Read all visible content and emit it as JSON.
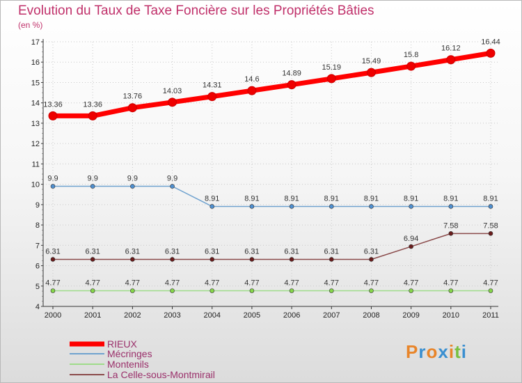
{
  "title": "Evolution du Taux de Taxe Foncière sur les Propriétés Bâties",
  "subtitle": "(en %)",
  "logo": [
    "P",
    "r",
    "o",
    "x",
    "i",
    "t",
    "i"
  ],
  "logo_colors": [
    "#e8852a",
    "#3a8fd0",
    "#e8852a",
    "#3a8fd0",
    "#e8852a",
    "#78c040",
    "#3a8fd0"
  ],
  "chart_data": {
    "type": "line",
    "x": [
      2000,
      2001,
      2002,
      2003,
      2004,
      2005,
      2006,
      2007,
      2008,
      2009,
      2010,
      2011
    ],
    "ylim": [
      4,
      17
    ],
    "yticks": [
      4,
      5,
      6,
      7,
      8,
      9,
      10,
      11,
      12,
      13,
      14,
      15,
      16,
      17
    ],
    "series": [
      {
        "name": "RIEUX",
        "color": "#ff0000",
        "marker": "#ee0000",
        "values": [
          13.36,
          13.36,
          13.76,
          14.03,
          14.31,
          14.6,
          14.89,
          15.19,
          15.49,
          15.8,
          16.12,
          16.44
        ],
        "labels": [
          "13.36",
          "13.36",
          "13.76",
          "14.03",
          "14.31",
          "14.6",
          "14.89",
          "15.19",
          "15.49",
          "15.8",
          "16.12",
          "16.44"
        ]
      },
      {
        "name": "Mécringes",
        "color": "#6fa2cf",
        "marker": "#4f8fcf",
        "values": [
          9.9,
          9.9,
          9.9,
          9.9,
          8.91,
          8.91,
          8.91,
          8.91,
          8.91,
          8.91,
          8.91,
          8.91
        ],
        "labels": [
          "9.9",
          "9.9",
          "9.9",
          "9.9",
          "8.91",
          "8.91",
          "8.91",
          "8.91",
          "8.91",
          "8.91",
          "8.91",
          "8.91"
        ]
      },
      {
        "name": "Montenils",
        "color": "#9fdc8a",
        "marker": "#86d64a",
        "values": [
          4.77,
          4.77,
          4.77,
          4.77,
          4.77,
          4.77,
          4.77,
          4.77,
          4.77,
          4.77,
          4.77,
          4.77
        ],
        "labels": [
          "4.77",
          "4.77",
          "4.77",
          "4.77",
          "4.77",
          "4.77",
          "4.77",
          "4.77",
          "4.77",
          "4.77",
          "4.77",
          "4.77"
        ]
      },
      {
        "name": "La Celle-sous-Montmirail",
        "color": "#8a4a4a",
        "marker": "#6a1c1c",
        "values": [
          6.31,
          6.31,
          6.31,
          6.31,
          6.31,
          6.31,
          6.31,
          6.31,
          6.31,
          6.94,
          7.58,
          7.58
        ],
        "labels": [
          "6.31",
          "6.31",
          "6.31",
          "6.31",
          "6.31",
          "6.31",
          "6.31",
          "6.31",
          "6.31",
          "6.94",
          "7.58",
          "7.58"
        ]
      }
    ]
  }
}
